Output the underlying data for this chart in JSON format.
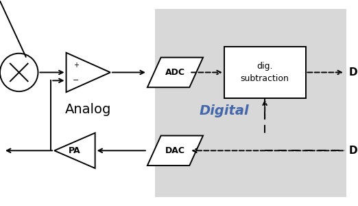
{
  "bg_color": "#ffffff",
  "digital_bg_color": "#d8d8d8",
  "analog_label": "Analog",
  "digital_label": "Digital",
  "digital_label_color": "#4466aa",
  "dig_sub_text": "dig.\nsubtraction",
  "adc_label": "ADC",
  "dac_label": "DAC",
  "pa_label": "PA",
  "d_label": "D",
  "line_color": "#000000",
  "figw": 5.22,
  "figh": 3.0,
  "dpi": 100
}
